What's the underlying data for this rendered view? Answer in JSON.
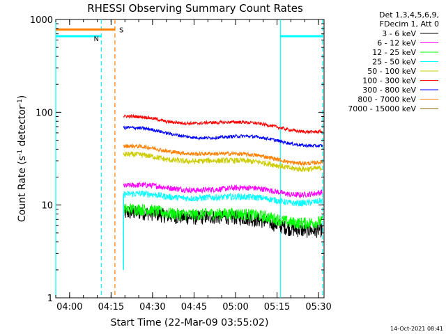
{
  "chart_data": {
    "type": "line",
    "title": "RHESSI Observing Summary Count Rates",
    "xlabel": "Start Time (22-Mar-09 03:55:02)",
    "ylabel": "Count Rate (s",
    "ylabel_sup1": "-1",
    "ylabel_mid": " detector",
    "ylabel_sup2": "-1",
    "ylabel_end": ")",
    "yscale": "log",
    "ylim": [
      1,
      1000
    ],
    "xlim_minutes": [
      0,
      97
    ],
    "y_ticks": [
      {
        "value": 1,
        "label": "1"
      },
      {
        "value": 10,
        "label": "10"
      },
      {
        "value": 100,
        "label": "100"
      },
      {
        "value": 1000,
        "label": "1000"
      }
    ],
    "x_ticks": [
      {
        "value": 5,
        "label": "04:00"
      },
      {
        "value": 20,
        "label": "04:15"
      },
      {
        "value": 35,
        "label": "04:30"
      },
      {
        "value": 50,
        "label": "04:45"
      },
      {
        "value": 65,
        "label": "05:00"
      },
      {
        "value": 80,
        "label": "05:15"
      },
      {
        "value": 95,
        "label": "05:30"
      }
    ],
    "legend": {
      "header1": "Det 1,3,4,5,6,9,",
      "header2": "FDecim 1, Att 0",
      "position": "right"
    },
    "series": [
      {
        "name": "3 - 6 keV",
        "color": "#000000",
        "start": 24.5,
        "end": 96.5,
        "levels": [
          [
            24.5,
            8.2
          ],
          [
            40,
            7.5
          ],
          [
            55,
            8.0
          ],
          [
            70,
            6.8
          ],
          [
            85,
            5.8
          ],
          [
            96.5,
            5.6
          ]
        ]
      },
      {
        "name": "6 - 12 keV",
        "color": "#ff00ff",
        "start": 24.5,
        "end": 96.5,
        "levels": [
          [
            24.5,
            16.0
          ],
          [
            40,
            15.0
          ],
          [
            55,
            15.5
          ],
          [
            70,
            14.5
          ],
          [
            85,
            13.5
          ],
          [
            96.5,
            14.2
          ]
        ]
      },
      {
        "name": "12 - 25 keV",
        "color": "#00ff00",
        "start": 24.5,
        "end": 96.5,
        "levels": [
          [
            24.5,
            9.0
          ],
          [
            40,
            8.0
          ],
          [
            55,
            8.6
          ],
          [
            70,
            7.5
          ],
          [
            85,
            6.8
          ],
          [
            96.5,
            6.9
          ]
        ]
      },
      {
        "name": "25 - 50 keV",
        "color": "#00ffff",
        "start": 24.5,
        "end": 96.5,
        "levels": [
          [
            24.5,
            13.0
          ],
          [
            40,
            12.0
          ],
          [
            55,
            12.8
          ],
          [
            70,
            11.5
          ],
          [
            85,
            11.0
          ],
          [
            96.5,
            11.5
          ]
        ]
      },
      {
        "name": "50 - 100 keV",
        "color": "#cccc00",
        "start": 24.5,
        "end": 96.5,
        "levels": [
          [
            24.5,
            35.0
          ],
          [
            40,
            30.0
          ],
          [
            55,
            32.0
          ],
          [
            70,
            28.0
          ],
          [
            85,
            26.0
          ],
          [
            96.5,
            26.0
          ]
        ]
      },
      {
        "name": "100 - 300 keV",
        "color": "#ff0000",
        "start": 24.5,
        "end": 96.5,
        "levels": [
          [
            24.5,
            90.0
          ],
          [
            40,
            77.0
          ],
          [
            55,
            82.0
          ],
          [
            70,
            73.0
          ],
          [
            85,
            67.0
          ],
          [
            96.5,
            64.0
          ]
        ]
      },
      {
        "name": "300 - 800 keV",
        "color": "#0000ff",
        "start": 24.5,
        "end": 96.5,
        "levels": [
          [
            24.5,
            68.0
          ],
          [
            40,
            58.0
          ],
          [
            55,
            56.0
          ],
          [
            70,
            52.0
          ],
          [
            85,
            48.0
          ],
          [
            96.5,
            45.0
          ]
        ]
      },
      {
        "name": "800 - 7000 keV",
        "color": "#ff8000",
        "start": 24.5,
        "end": 96.5,
        "levels": [
          [
            24.5,
            43.0
          ],
          [
            40,
            37.0
          ],
          [
            55,
            38.0
          ],
          [
            70,
            33.0
          ],
          [
            85,
            30.0
          ],
          [
            96.5,
            30.0
          ]
        ]
      },
      {
        "name": "7000 - 15000 keV",
        "color": "#806600",
        "start": 24.5,
        "end": 96.5,
        "levels": []
      }
    ],
    "annotations": [
      {
        "label": "S",
        "color": "#ff8000",
        "x": 21.4,
        "level": 780,
        "bar_from": 0,
        "bar_to": 21.4
      },
      {
        "label": "N",
        "color": "#00ffff",
        "x": 16.5,
        "level": 660,
        "bar_from": 0,
        "bar_to": 16.5,
        "bar2_from": 81.2,
        "bar2_to": 96.5
      }
    ],
    "vertical_lines": [
      {
        "x": 0,
        "color": "#00ffff",
        "style": "solid"
      },
      {
        "x": 16.5,
        "color": "#00ffff",
        "style": "dashed"
      },
      {
        "x": 21.4,
        "color": "#ff8000",
        "style": "dashed"
      },
      {
        "x": 81.2,
        "color": "#00ffff",
        "style": "solid"
      },
      {
        "x": 96.5,
        "color": "#00ffff",
        "style": "dashed"
      }
    ]
  },
  "timestamp": "14-Oct-2021 08:41"
}
